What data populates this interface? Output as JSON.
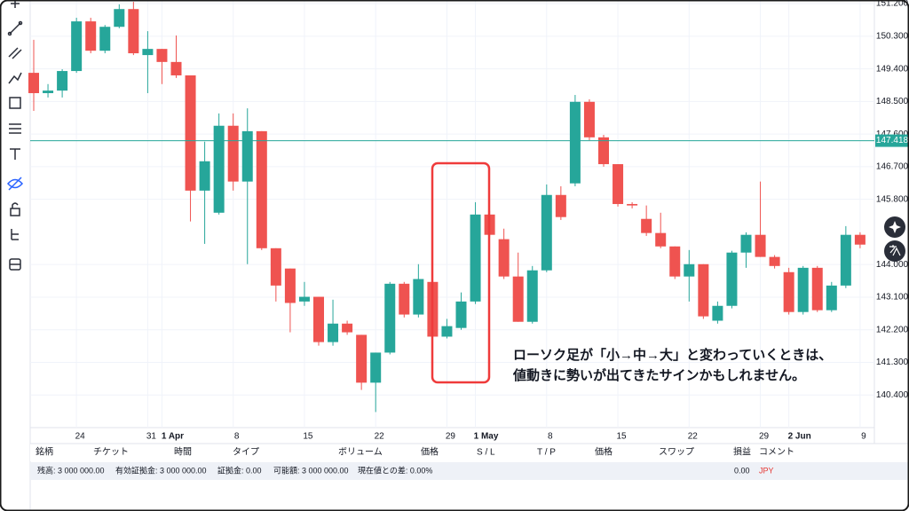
{
  "chart_data": {
    "type": "candlestick",
    "categories": [
      null,
      null,
      null,
      "24",
      null,
      null,
      null,
      null,
      "31",
      "1 Apr",
      null,
      null,
      null,
      null,
      "8",
      null,
      null,
      null,
      null,
      "15",
      null,
      null,
      null,
      null,
      "22",
      null,
      null,
      null,
      null,
      "29",
      null,
      "1 May",
      null,
      null,
      null,
      null,
      "8",
      null,
      null,
      null,
      null,
      "15",
      null,
      null,
      null,
      null,
      "22",
      null,
      null,
      null,
      null,
      "29",
      null,
      "2 Jun",
      null,
      null,
      null,
      null,
      "9"
    ],
    "open": [
      149.29,
      148.73,
      148.8,
      149.34,
      150.71,
      149.9,
      150.56,
      151.05,
      149.78,
      149.95,
      149.59,
      149.22,
      146.04,
      145.43,
      147.83,
      146.29,
      147.68,
      144.45,
      143.89,
      142.98,
      143.11,
      141.86,
      142.37,
      142.06,
      140.74,
      141.57,
      143.47,
      142.62,
      143.52,
      142.01,
      142.25,
      142.98,
      145.38,
      144.7,
      143.67,
      142.42,
      143.84,
      145.92,
      146.24,
      148.49,
      147.51,
      146.77,
      145.67,
      145.26,
      144.87,
      144.5,
      143.67,
      144.01,
      142.45,
      142.86,
      144.33,
      144.82,
      144.21,
      143.79,
      142.69,
      143.91,
      142.74,
      143.42,
      144.82
    ],
    "high": [
      150.2,
      148.98,
      149.39,
      150.81,
      150.81,
      150.61,
      151.18,
      151.25,
      150.44,
      149.95,
      150.32,
      149.22,
      147.39,
      148.17,
      148.17,
      148.31,
      147.68,
      144.45,
      143.89,
      143.52,
      143.11,
      143.03,
      142.45,
      142.06,
      141.57,
      143.52,
      143.52,
      144.01,
      143.52,
      142.5,
      143.23,
      145.72,
      145.48,
      144.99,
      144.33,
      143.96,
      146.21,
      146.16,
      148.68,
      148.56,
      147.58,
      146.77,
      145.72,
      145.63,
      145.43,
      144.5,
      144.4,
      144.01,
      142.98,
      144.38,
      144.89,
      146.29,
      144.26,
      143.91,
      143.96,
      143.96,
      143.52,
      145.06,
      144.89
    ],
    "low": [
      148.24,
      148.61,
      148.61,
      149.29,
      149.83,
      149.83,
      150.52,
      149.78,
      148.73,
      148.98,
      149.15,
      145.19,
      144.57,
      145.38,
      146.04,
      144.01,
      144.4,
      142.98,
      142.13,
      142.86,
      141.76,
      141.76,
      142.06,
      140.54,
      139.93,
      141.52,
      142.54,
      142.54,
      141.96,
      141.96,
      142.2,
      142.91,
      144.75,
      143.6,
      142.42,
      142.37,
      143.79,
      145.23,
      146.16,
      147.43,
      146.7,
      145.6,
      145.55,
      144.79,
      144.45,
      143.6,
      142.98,
      142.5,
      142.37,
      142.79,
      143.91,
      144.21,
      143.89,
      142.62,
      142.62,
      142.69,
      142.69,
      143.35,
      144.45
    ],
    "close": [
      148.73,
      148.8,
      149.34,
      150.71,
      149.9,
      150.56,
      151.05,
      149.83,
      149.95,
      149.59,
      149.22,
      146.04,
      146.85,
      147.83,
      146.29,
      147.68,
      144.45,
      143.42,
      142.94,
      143.11,
      141.86,
      142.37,
      142.13,
      140.74,
      141.57,
      143.47,
      142.62,
      143.6,
      142.01,
      142.3,
      142.98,
      145.38,
      144.82,
      143.67,
      142.42,
      143.84,
      145.92,
      145.31,
      148.49,
      147.51,
      146.77,
      145.67,
      145.63,
      144.87,
      144.5,
      143.67,
      144.01,
      142.57,
      142.86,
      144.33,
      144.82,
      144.21,
      143.96,
      142.69,
      143.91,
      142.74,
      143.42,
      144.82,
      144.55
    ],
    "up_color": "#26a69a",
    "down_color": "#ef5350",
    "ylim": [
      139.5,
      151.3
    ],
    "yticks": [
      {
        "value": 151.2,
        "label": "151.200"
      },
      {
        "value": 150.3,
        "label": "150.300"
      },
      {
        "value": 149.4,
        "label": "149.400"
      },
      {
        "value": 148.5,
        "label": "148.500"
      },
      {
        "value": 147.6,
        "label": "147.600"
      },
      {
        "value": 146.7,
        "label": "146.700"
      },
      {
        "value": 145.8,
        "label": "145.800"
      },
      {
        "value": 144.0,
        "label": "144.000"
      },
      {
        "value": 143.1,
        "label": "143.100"
      },
      {
        "value": 142.2,
        "label": "142.200"
      },
      {
        "value": 141.3,
        "label": "141.300"
      },
      {
        "value": 140.4,
        "label": "140.400"
      }
    ],
    "grid": true,
    "last_price": 147.418,
    "annotation": [
      "ローソク足が「小→中→大」と変わっていくときは、",
      "値動きに勢いが出てきたサインかもしれません。"
    ]
  },
  "panel": {
    "headers": [
      "銘柄",
      "チケット",
      "時間",
      "タイプ",
      "ボリューム",
      "価格",
      "S / L",
      "T / P",
      "価格",
      "スワップ",
      "損益",
      "コメント"
    ],
    "account": [
      "残高: 3 000 000.00",
      "有効証拠金: 3 000 000.00",
      "証拠金: 0.00",
      "可能額: 3 000 000.00",
      "現在値との差: 0.00%",
      "0.00",
      "JPY"
    ]
  }
}
